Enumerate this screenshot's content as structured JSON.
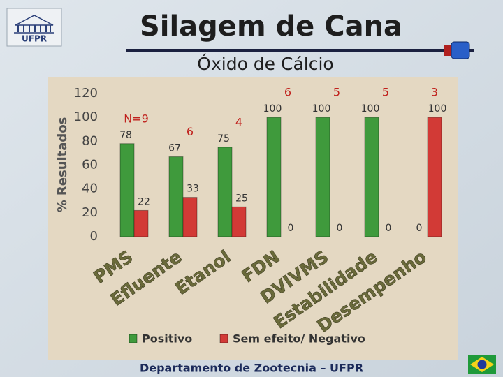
{
  "header": {
    "logo": "UFPR",
    "title": "Silagem de Cana",
    "subtitle": "Óxido de Cálcio"
  },
  "footer": "Departamento de Zootecnia – UFPR",
  "chart_data": {
    "type": "bar",
    "y_label": "% Resultados",
    "categories": [
      "PMS",
      "Efluente",
      "Etanol",
      "FDN",
      "DVIVMS",
      "Estabilidade",
      "Desempenho"
    ],
    "n_labels": [
      "N=9",
      "6",
      "4",
      "6",
      "5",
      "5",
      "3"
    ],
    "series": [
      {
        "name": "Positivo",
        "color": "#3f9a3c",
        "values": [
          78,
          67,
          75,
          100,
          100,
          100,
          0
        ]
      },
      {
        "name": "Sem efeito/ Negativo",
        "color": "#d23a36",
        "values": [
          22,
          33,
          25,
          0,
          0,
          0,
          100
        ]
      }
    ],
    "ylim": [
      0,
      120
    ],
    "yticks": [
      0,
      20,
      40,
      60,
      80,
      100,
      120
    ],
    "grid": false
  }
}
